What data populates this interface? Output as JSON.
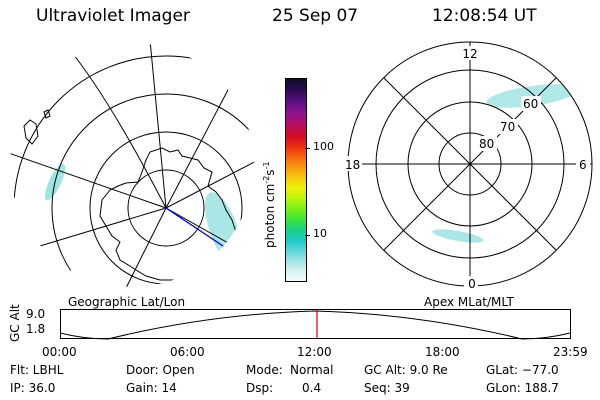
{
  "header": {
    "title": "Ultraviolet Imager",
    "date": "25 Sep 07",
    "time": "12:08:54 UT"
  },
  "left_panel": {
    "caption": "Geographic Lat/Lon"
  },
  "right_panel": {
    "caption": "Apex MLat/MLT",
    "mlt_labels": {
      "top": "12",
      "bottom": "0",
      "left": "18",
      "right": "6"
    },
    "lat_labels": [
      "80",
      "70",
      "60"
    ]
  },
  "colorbar": {
    "unit_label": "photon cm",
    "unit_sup1": "-2",
    "unit_mid": "s",
    "unit_sup2": "-1",
    "ticks": [
      "100",
      "10"
    ],
    "colors": [
      "#0d0d26",
      "#2a0a4e",
      "#5a0f82",
      "#8e128f",
      "#b80e5c",
      "#d60e22",
      "#ee3310",
      "#f56a10",
      "#f89c0e",
      "#f7c80c",
      "#eef00a",
      "#bff510",
      "#7bef18",
      "#39e23c",
      "#1ad088",
      "#1ec9c8",
      "#5fd6d8",
      "#9fe4e4",
      "#d4f1f1",
      "#f4fbfb"
    ]
  },
  "timeline": {
    "ylabel": "GC Alt",
    "yticks": [
      "9.0",
      "1.8"
    ],
    "xticks": [
      "00:00",
      "06:00",
      "12:00",
      "18:00",
      "23:59"
    ],
    "current_time": "12:08:54"
  },
  "info": {
    "flt": "Flt: LBHL",
    "ip": "IP: 36.0",
    "door": "Door: Open",
    "gain": "Gain: 14",
    "mode_label": "Mode:",
    "mode_value": "Normal",
    "dsp_label": "Dsp:",
    "dsp_value": "0.4",
    "gc_alt": "GC Alt: 9.0 Re",
    "seq": "Seq: 39",
    "glat": "GLat: −77.0",
    "glon": "GLon: 188.7"
  },
  "colors": {
    "aurora": "#8fdede",
    "red_marker": "#dd0000",
    "blue_line": "#0000cc"
  }
}
